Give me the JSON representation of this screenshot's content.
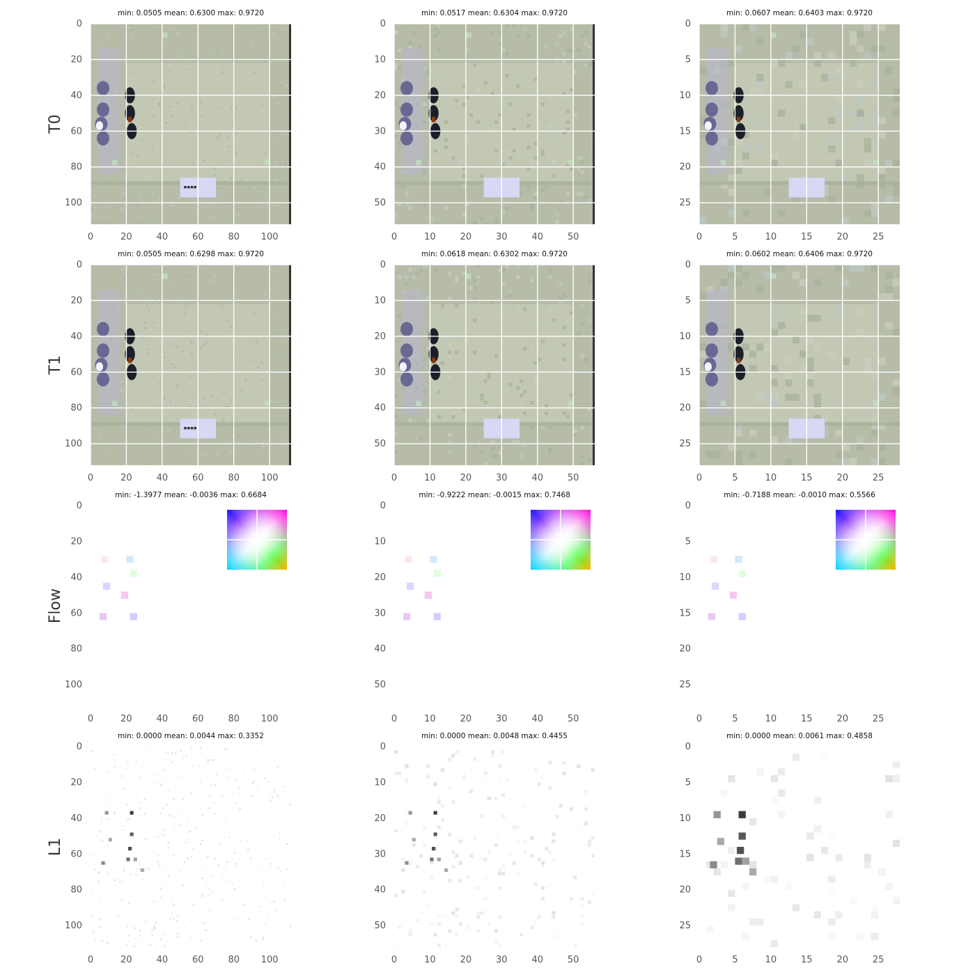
{
  "colors": {
    "grid": "#ffffff",
    "tick_text": "#555555",
    "title_text": "#111111",
    "row_label_text": "#333333",
    "ground": "#b6bca8",
    "paper": "#d8d8f4",
    "crab_dark": "#1c1f2a",
    "crab_blue": "#5a5a8c"
  },
  "row_labels": [
    "T0",
    "T1",
    "Flow",
    "L1"
  ],
  "chart_data": [
    {
      "type": "heatmap",
      "kind": "image",
      "row": "T0",
      "scale": "1",
      "title": "min: 0.0505 mean: 0.6300 max: 0.9720",
      "xlim": [
        0,
        112
      ],
      "ylim": [
        0,
        112
      ],
      "xticks": [
        0,
        20,
        40,
        60,
        80,
        100
      ],
      "yticks": [
        0,
        20,
        40,
        60,
        80,
        100
      ],
      "grid": true
    },
    {
      "type": "heatmap",
      "kind": "image",
      "row": "T0",
      "scale": "1/2",
      "title": "min: 0.0517 mean: 0.6304 max: 0.9720",
      "xlim": [
        0,
        56
      ],
      "ylim": [
        0,
        56
      ],
      "xticks": [
        0,
        10,
        20,
        30,
        40,
        50
      ],
      "yticks": [
        0,
        10,
        20,
        30,
        40,
        50
      ],
      "grid": true
    },
    {
      "type": "heatmap",
      "kind": "image",
      "row": "T0",
      "scale": "1/4",
      "title": "min: 0.0607 mean: 0.6403 max: 0.9720",
      "xlim": [
        0,
        28
      ],
      "ylim": [
        0,
        28
      ],
      "xticks": [
        0,
        5,
        10,
        15,
        20,
        25
      ],
      "yticks": [
        0,
        5,
        10,
        15,
        20,
        25
      ],
      "grid": true
    },
    {
      "type": "heatmap",
      "kind": "image",
      "row": "T1",
      "scale": "1",
      "title": "min: 0.0505 mean: 0.6298 max: 0.9720",
      "xlim": [
        0,
        112
      ],
      "ylim": [
        0,
        112
      ],
      "xticks": [
        0,
        20,
        40,
        60,
        80,
        100
      ],
      "yticks": [
        0,
        20,
        40,
        60,
        80,
        100
      ],
      "grid": true
    },
    {
      "type": "heatmap",
      "kind": "image",
      "row": "T1",
      "scale": "1/2",
      "title": "min: 0.0618 mean: 0.6302 max: 0.9720",
      "xlim": [
        0,
        56
      ],
      "ylim": [
        0,
        56
      ],
      "xticks": [
        0,
        10,
        20,
        30,
        40,
        50
      ],
      "yticks": [
        0,
        10,
        20,
        30,
        40,
        50
      ],
      "grid": true
    },
    {
      "type": "heatmap",
      "kind": "image",
      "row": "T1",
      "scale": "1/4",
      "title": "min: 0.0602 mean: 0.6406 max: 0.9720",
      "xlim": [
        0,
        28
      ],
      "ylim": [
        0,
        28
      ],
      "xticks": [
        0,
        5,
        10,
        15,
        20,
        25
      ],
      "yticks": [
        0,
        5,
        10,
        15,
        20,
        25
      ],
      "grid": true
    },
    {
      "type": "heatmap",
      "kind": "flow",
      "row": "Flow",
      "scale": "1",
      "title": "min: -1.3977 mean: -0.0036 max: 0.6684",
      "xlim": [
        0,
        112
      ],
      "ylim": [
        0,
        112
      ],
      "xticks": [
        0,
        20,
        40,
        60,
        80,
        100
      ],
      "yticks": [
        0,
        20,
        40,
        60,
        80,
        100
      ],
      "grid": false,
      "color_wheel": "top-right"
    },
    {
      "type": "heatmap",
      "kind": "flow",
      "row": "Flow",
      "scale": "1/2",
      "title": "min: -0.9222 mean: -0.0015 max: 0.7468",
      "xlim": [
        0,
        56
      ],
      "ylim": [
        0,
        56
      ],
      "xticks": [
        0,
        10,
        20,
        30,
        40,
        50
      ],
      "yticks": [
        0,
        10,
        20,
        30,
        40,
        50
      ],
      "grid": false,
      "color_wheel": "top-right"
    },
    {
      "type": "heatmap",
      "kind": "flow",
      "row": "Flow",
      "scale": "1/4",
      "title": "min: -0.7188 mean: -0.0010 max: 0.5566",
      "xlim": [
        0,
        28
      ],
      "ylim": [
        0,
        28
      ],
      "xticks": [
        0,
        5,
        10,
        15,
        20,
        25
      ],
      "yticks": [
        0,
        5,
        10,
        15,
        20,
        25
      ],
      "grid": false,
      "color_wheel": "top-right"
    },
    {
      "type": "heatmap",
      "kind": "error",
      "row": "L1",
      "scale": "1",
      "title": "min: 0.0000 mean: 0.0044 max: 0.3352",
      "xlim": [
        0,
        112
      ],
      "ylim": [
        0,
        112
      ],
      "xticks": [
        0,
        20,
        40,
        60,
        80,
        100
      ],
      "yticks": [
        0,
        20,
        40,
        60,
        80,
        100
      ],
      "grid": false,
      "colormap": "gray_r"
    },
    {
      "type": "heatmap",
      "kind": "error",
      "row": "L1",
      "scale": "1/2",
      "title": "min: 0.0000 mean: 0.0048 max: 0.4455",
      "xlim": [
        0,
        56
      ],
      "ylim": [
        0,
        56
      ],
      "xticks": [
        0,
        10,
        20,
        30,
        40,
        50
      ],
      "yticks": [
        0,
        10,
        20,
        30,
        40,
        50
      ],
      "grid": false,
      "colormap": "gray_r"
    },
    {
      "type": "heatmap",
      "kind": "error",
      "row": "L1",
      "scale": "1/4",
      "title": "min: 0.0000 mean: 0.0061 max: 0.4858",
      "xlim": [
        0,
        28
      ],
      "ylim": [
        0,
        28
      ],
      "xticks": [
        0,
        5,
        10,
        15,
        20,
        25
      ],
      "yticks": [
        0,
        5,
        10,
        15,
        20,
        25
      ],
      "grid": false,
      "colormap": "gray_r"
    }
  ]
}
